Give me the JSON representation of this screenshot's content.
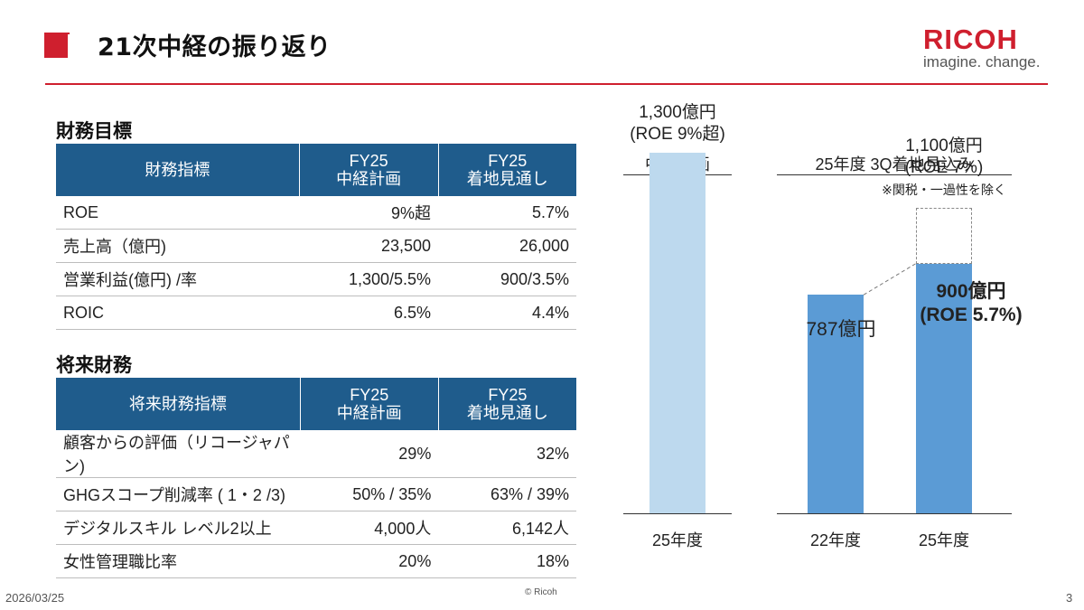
{
  "header": {
    "title": "21次中経の振り返り",
    "logo_word": "RICOH",
    "logo_tagline": "imagine. change."
  },
  "financial": {
    "section_title": "財務目標",
    "headers": [
      "財務指標",
      "FY25",
      "中経計画",
      "FY25",
      "着地見通し"
    ],
    "rows": [
      {
        "label": "ROE",
        "plan": "9%超",
        "forecast": "5.7%"
      },
      {
        "label": "売上高（億円)",
        "plan": "23,500",
        "forecast": "26,000"
      },
      {
        "label": "営業利益(億円) /率",
        "plan": "1,300/5.5%",
        "forecast": "900/3.5%"
      },
      {
        "label": "ROIC",
        "plan": "6.5%",
        "forecast": "4.4%"
      }
    ]
  },
  "future": {
    "section_title": "将来財務",
    "headers": [
      "将来財務指標",
      "FY25",
      "中経計画",
      "FY25",
      "着地見通し"
    ],
    "rows": [
      {
        "label": "顧客からの評価（リコージャパン)",
        "plan": "29%",
        "forecast": "32%"
      },
      {
        "label": "GHGスコープ削減率 ( 1・2 /3)",
        "plan": "50% / 35%",
        "forecast": "63% / 39%"
      },
      {
        "label": "デジタルスキル レベル2以上",
        "plan": "4,000人",
        "forecast": "6,142人"
      },
      {
        "label": "女性管理職比率",
        "plan": "20%",
        "forecast": "18%"
      }
    ]
  },
  "chart_data": {
    "type": "bar",
    "unit": "億円",
    "groups": [
      "中経計画",
      "25年度 3Q着地見込み"
    ],
    "bars": [
      {
        "group": "中経計画",
        "category": "25年度",
        "value": 1300,
        "label": "1,300億円",
        "sublabel": "(ROE 9%超)",
        "color": "#bdd9ee"
      },
      {
        "group": "25年度 3Q着地見込み",
        "category": "22年度",
        "value": 787,
        "label": "787億円",
        "color": "#5b9bd5"
      },
      {
        "group": "25年度 3Q着地見込み",
        "category": "25年度",
        "value": 900,
        "label": "900億円",
        "sublabel": "(ROE 5.7%)",
        "color": "#5b9bd5",
        "adjusted_value": 1100,
        "adjusted_label": "1,100億円",
        "adjusted_sublabel": "(ROE 7%)",
        "adjusted_note": "※関税・一過性を除く"
      }
    ],
    "ylim": [
      0,
      1400
    ]
  },
  "footer": {
    "date": "2026/03/25",
    "copyright": "© Ricoh",
    "page": "3"
  }
}
